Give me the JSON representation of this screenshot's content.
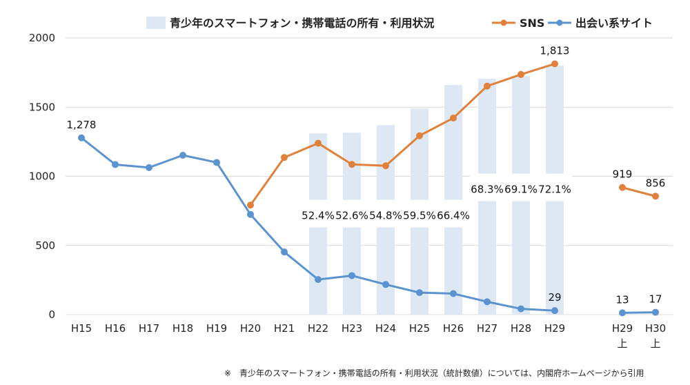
{
  "chart_data": {
    "type": "bar+line",
    "y_axis": {
      "min": 0,
      "max": 2000,
      "ticks": [
        0,
        500,
        1000,
        1500,
        2000
      ],
      "tick_labels": [
        "0",
        "500",
        "1000",
        "1500",
        "2000"
      ]
    },
    "categories": [
      "H15",
      "H16",
      "H17",
      "H18",
      "H19",
      "H20",
      "H21",
      "H22",
      "H23",
      "H24",
      "H25",
      "H26",
      "H27",
      "H28",
      "H29"
    ],
    "extra_categories": [
      {
        "line1": "H29",
        "line2": "上"
      },
      {
        "line1": "H30",
        "line2": "上"
      }
    ],
    "legend": {
      "bar": "青少年のスマートフォン・携帯電話の所有・利用状況",
      "sns": "SNS",
      "deai": "出会い系サイト"
    },
    "bar_series": {
      "name": "青少年のスマートフォン・携帯電話の所有・利用状況",
      "values": [
        null,
        null,
        null,
        null,
        null,
        null,
        null,
        1310,
        1315,
        1370,
        1490,
        1660,
        1705,
        1725,
        1800
      ],
      "labels": [
        null,
        null,
        null,
        null,
        null,
        null,
        null,
        "52.4%",
        "52.6%",
        "54.8%",
        "59.5%",
        "66.4%",
        "68.3%",
        "69.1%",
        "72.1%"
      ]
    },
    "sns_series": {
      "name": "SNS",
      "values": [
        null,
        null,
        null,
        null,
        null,
        792,
        1136,
        1239,
        1086,
        1076,
        1293,
        1421,
        1652,
        1736,
        1813
      ],
      "extra_values": [
        919,
        856
      ],
      "point_labels": {
        "14": "1,813"
      },
      "extra_labels": [
        "919",
        "856"
      ]
    },
    "deai_series": {
      "name": "出会い系サイト",
      "values": [
        1278,
        1085,
        1063,
        1152,
        1100,
        724,
        453,
        254,
        282,
        218,
        159,
        152,
        93,
        42,
        29
      ],
      "extra_values": [
        13,
        17
      ],
      "point_labels": {
        "0": "1,278",
        "14": "29"
      },
      "extra_labels": [
        "13",
        "17"
      ]
    },
    "colors": {
      "bar": "#dde8f4",
      "sns": "#e0803a",
      "deai": "#5b93d1",
      "grid": "#d9d9d9"
    }
  },
  "footnote": "※　青少年のスマートフォン・携帯電話の所有・利用状況（統計数値）については、内閣府ホームページから引用"
}
